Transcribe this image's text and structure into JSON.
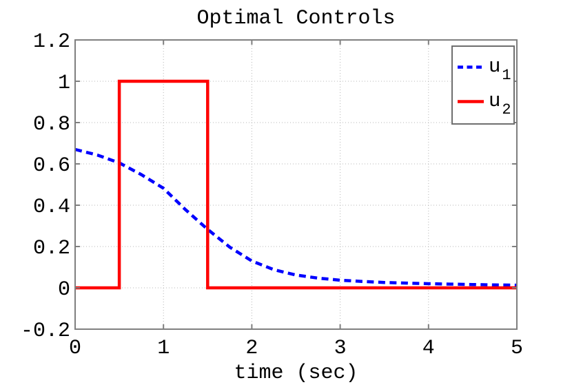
{
  "title": "Optimal Controls",
  "xlabel": "time (sec)",
  "colors": {
    "u1": "#0000ff",
    "u2": "#ff0000",
    "axis": "#7f7f7f",
    "grid": "#b4b4b4",
    "text": "#000000",
    "legend_border": "#6e6e6e",
    "background": "#ffffff"
  },
  "legend": {
    "entries": [
      {
        "label": "u",
        "subscript": "1",
        "series_index": 0
      },
      {
        "label": "u",
        "subscript": "2",
        "series_index": 1
      }
    ]
  },
  "chart_data": {
    "type": "line",
    "title": "Optimal Controls",
    "xlabel": "time (sec)",
    "ylabel": "",
    "xlim": [
      0,
      5
    ],
    "ylim": [
      -0.2,
      1.2
    ],
    "grid": true,
    "grid_style": "dotted",
    "legend_position": "top-right",
    "xticks": [
      0,
      1,
      2,
      3,
      4,
      5
    ],
    "xtick_labels": [
      "0",
      "1",
      "2",
      "3",
      "4",
      "5"
    ],
    "yticks": [
      -0.2,
      0,
      0.2,
      0.4,
      0.6,
      0.8,
      1,
      1.2
    ],
    "ytick_labels": [
      "-0.2",
      "0",
      "0.2",
      "0.4",
      "0.6",
      "0.8",
      "1",
      "1.2"
    ],
    "series": [
      {
        "name": "u_1",
        "color": "#0000ff",
        "style": "dashed",
        "x": [
          0,
          0.25,
          0.5,
          0.75,
          1,
          1.25,
          1.5,
          1.75,
          2,
          2.25,
          2.5,
          2.75,
          3,
          3.25,
          3.5,
          3.75,
          4,
          4.25,
          4.5,
          4.75,
          5
        ],
        "y": [
          0.67,
          0.643,
          0.605,
          0.548,
          0.482,
          0.378,
          0.283,
          0.197,
          0.13,
          0.088,
          0.062,
          0.047,
          0.037,
          0.031,
          0.026,
          0.023,
          0.02,
          0.018,
          0.016,
          0.014,
          0.013
        ]
      },
      {
        "name": "u_2",
        "color": "#ff0000",
        "style": "solid",
        "x": [
          0,
          0.5,
          0.5,
          1.5,
          1.5,
          5
        ],
        "y": [
          0,
          0,
          1,
          1,
          0,
          0
        ]
      }
    ]
  }
}
